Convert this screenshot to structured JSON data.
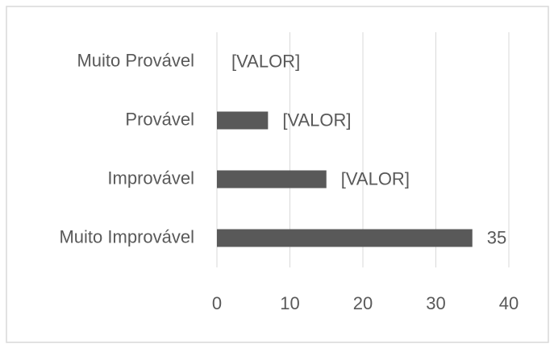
{
  "chart_data": {
    "type": "bar",
    "orientation": "horizontal",
    "categories": [
      "Muito Provável",
      "Provável",
      "Improvável",
      "Muito Improvável"
    ],
    "values": [
      0,
      7,
      15,
      35
    ],
    "value_labels": [
      "[VALOR]",
      "[VALOR]",
      "[VALOR]",
      "35"
    ],
    "color": "#595959",
    "xlim": [
      0,
      40
    ],
    "xticks": [
      0,
      10,
      20,
      30,
      40
    ],
    "grid": true
  }
}
